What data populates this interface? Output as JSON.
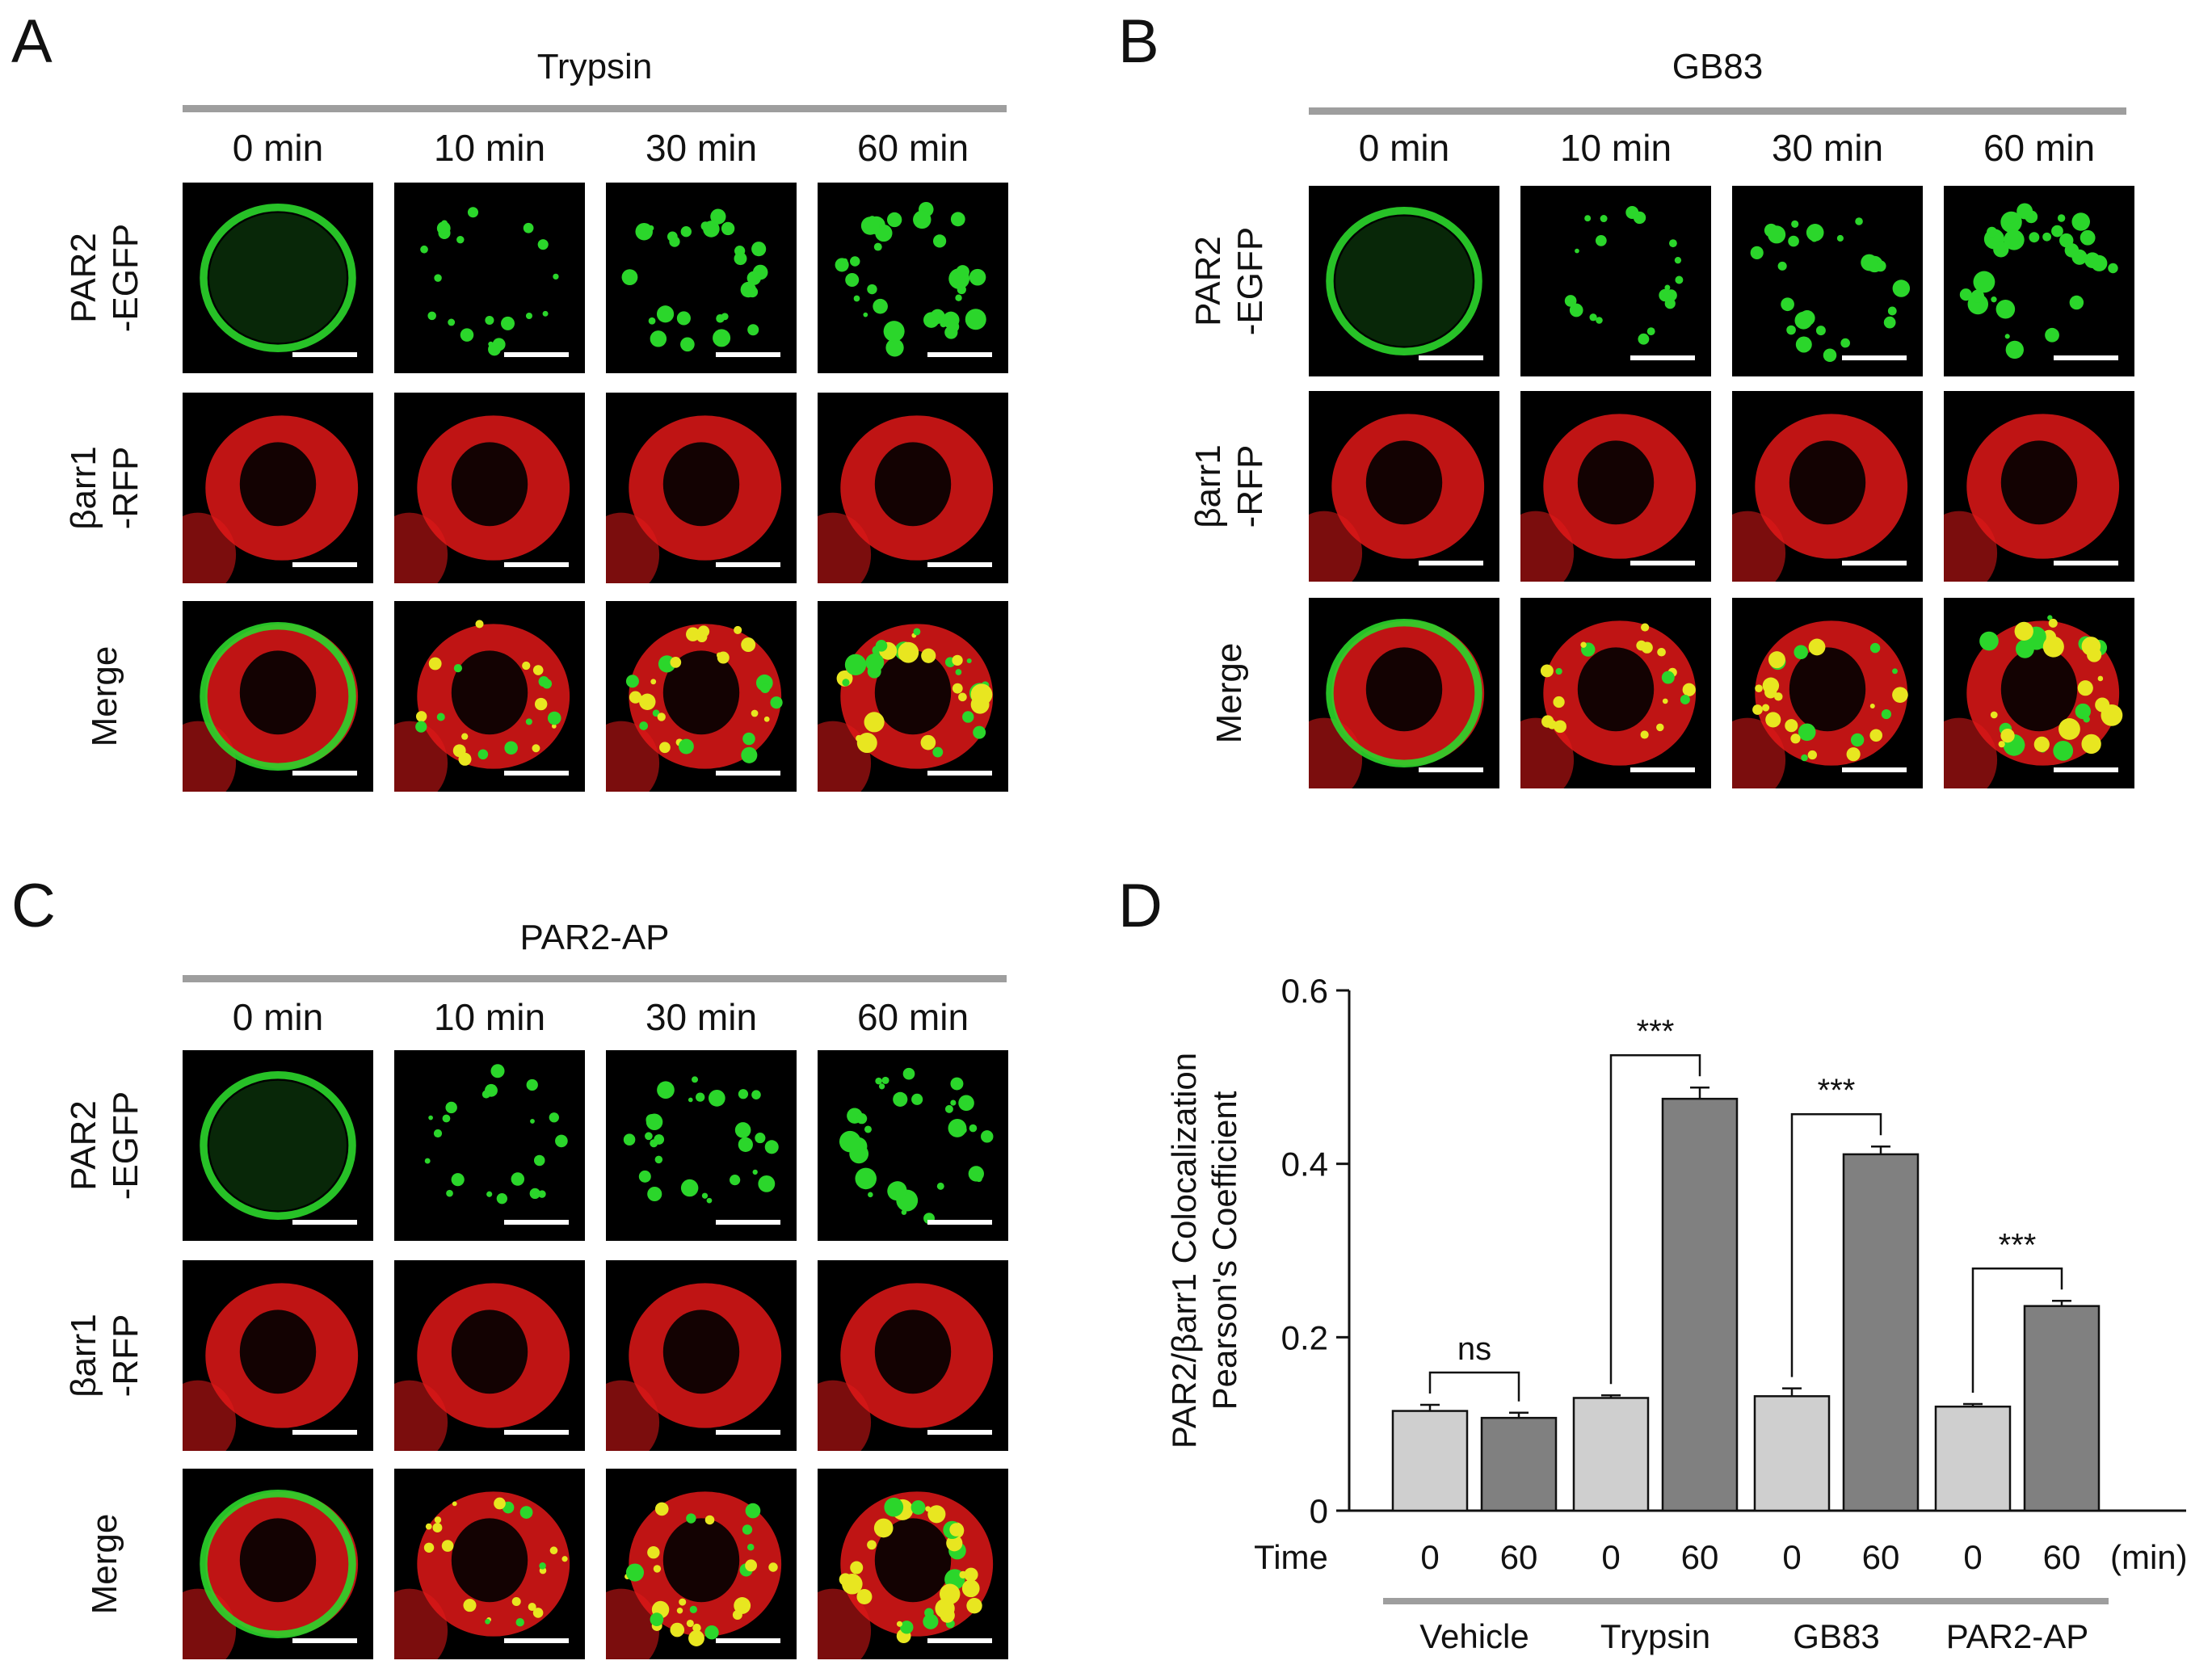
{
  "panels": {
    "A": {
      "letter": "A",
      "title": "Trypsin"
    },
    "B": {
      "letter": "B",
      "title": "GB83"
    },
    "C": {
      "letter": "C",
      "title": "PAR2-AP"
    },
    "D": {
      "letter": "D"
    }
  },
  "time_labels": [
    "0 min",
    "10 min",
    "30 min",
    "60 min"
  ],
  "row_labels": {
    "row1_line1": "PAR2",
    "row1_line2": "-EGFP",
    "row2_line1": "βarr1",
    "row2_line2": "-RFP",
    "row3": "Merge"
  },
  "colors": {
    "egfp": "#2bd62b",
    "rfp": "#e01818",
    "merge_overlap": "#e8e620",
    "bar_light": "#cfcfcf",
    "bar_dark": "#808080",
    "group_line": "#9e9e9e"
  },
  "chart_data": {
    "type": "bar",
    "ylabel_line1": "PAR2/βarr1 Colocalization",
    "ylabel_line2": "Pearson's Coefficient",
    "ylim": [
      0,
      0.6
    ],
    "yticks": [
      0,
      0.2,
      0.4,
      0.6
    ],
    "ytick_labels": [
      "0",
      "0.2",
      "0.4",
      "0.6"
    ],
    "xlabel_prefix": "Time",
    "x_unit": "(min)",
    "groups": [
      {
        "name": "Vehicle",
        "times": [
          "0",
          "60"
        ],
        "values": [
          0.115,
          0.107
        ],
        "errors": [
          0.007,
          0.006
        ],
        "significance": "ns"
      },
      {
        "name": "Trypsin",
        "times": [
          "0",
          "60"
        ],
        "values": [
          0.13,
          0.475
        ],
        "errors": [
          0.003,
          0.013
        ],
        "significance": "***"
      },
      {
        "name": "GB83",
        "times": [
          "0",
          "60"
        ],
        "values": [
          0.132,
          0.411
        ],
        "errors": [
          0.009,
          0.009
        ],
        "significance": "***"
      },
      {
        "name": "PAR2-AP",
        "times": [
          "0",
          "60"
        ],
        "values": [
          0.12,
          0.236
        ],
        "errors": [
          0.003,
          0.006
        ],
        "significance": "***"
      }
    ]
  }
}
